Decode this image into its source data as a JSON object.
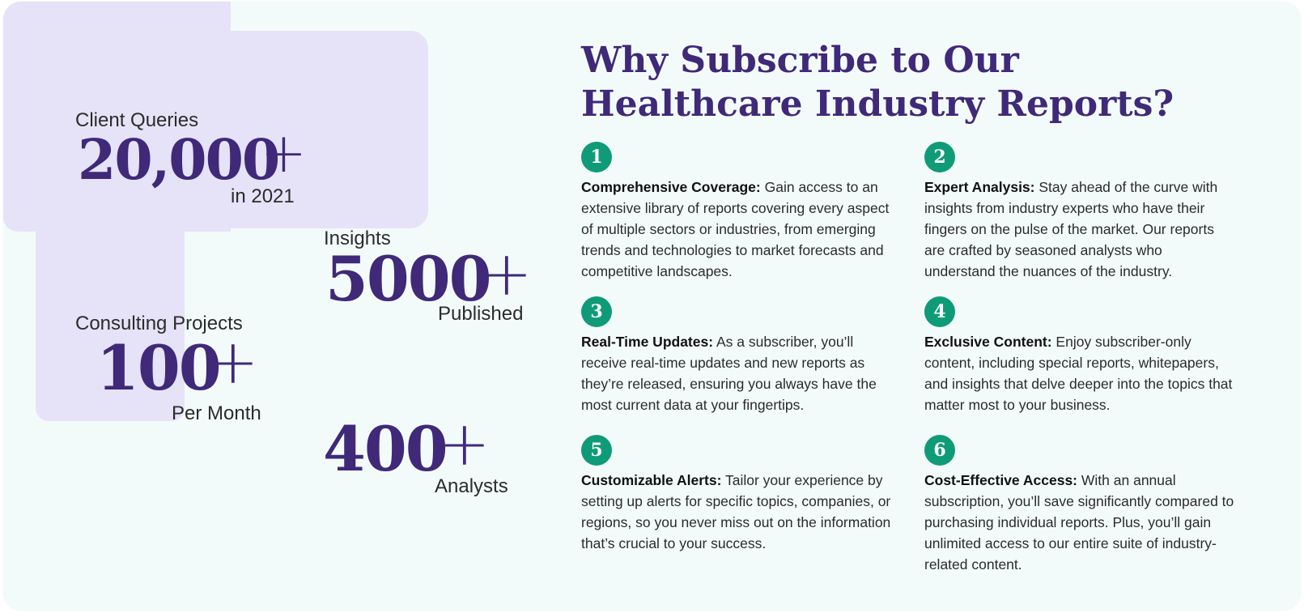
{
  "stats": {
    "client_queries": {
      "label": "Client Queries",
      "value": "20,000",
      "plus": "+",
      "suffix": "in 2021"
    },
    "insights": {
      "label": "Insights",
      "value": "5000",
      "plus": "+",
      "suffix": "Published"
    },
    "consulting": {
      "label": "Consulting Projects",
      "value": "100",
      "plus": "+",
      "suffix": "Per Month"
    },
    "analysts": {
      "value": "400",
      "plus": "+",
      "suffix": "Analysts"
    }
  },
  "heading": "Why Subscribe to Our Healthcare Industry Reports?",
  "features": [
    {
      "number": "1",
      "title": "Comprehensive Coverage:",
      "text": "Gain access to an extensive library of reports covering every aspect of multiple sectors or industries, from emerging trends and technologies to market forecasts and competitive landscapes."
    },
    {
      "number": "2",
      "title": "Expert Analysis:",
      "text": "Stay ahead of the curve with insights from industry experts who have their fingers on the pulse of the market. Our reports are crafted by seasoned analysts who understand the nuances of the industry."
    },
    {
      "number": "3",
      "title": "Real-Time Updates:",
      "text": "As a subscriber, you’ll receive real-time updates and new reports as they’re released, ensuring you always have the most current data at your fingertips."
    },
    {
      "number": "4",
      "title": "Exclusive Content:",
      "text": "Enjoy subscriber-only content, including special reports, whitepapers, and insights that delve deeper into the topics that matter most to your business."
    },
    {
      "number": "5",
      "title": "Customizable Alerts:",
      "text": "Tailor your experience by setting up alerts for specific topics, companies, or regions, so you never miss out on the information that’s crucial to your success."
    },
    {
      "number": "6",
      "title": "Cost-Effective Access:",
      "text": "With an annual subscription, you’ll save significantly compared to purchasing individual reports. Plus, you’ll gain unlimited access to our entire suite of industry-related content."
    }
  ],
  "colors": {
    "accent": "#3f2978",
    "badge": "#0f9b78",
    "panel": "#f3fbfa",
    "blob": "#e6e2f7"
  }
}
